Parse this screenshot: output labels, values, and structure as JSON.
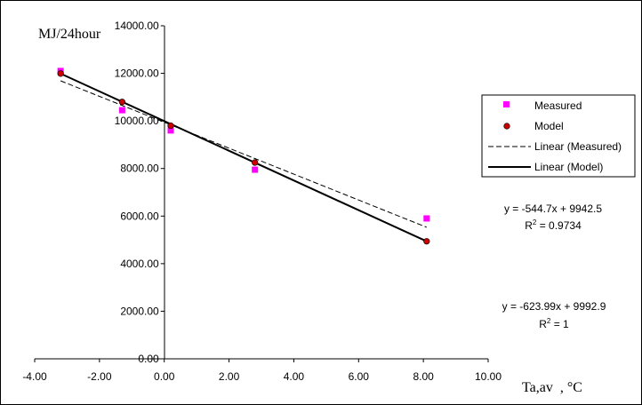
{
  "chart_data": {
    "type": "scatter",
    "xlabel": "Ta,av  , °C",
    "ylabel": "MJ/24hour",
    "xlim": [
      -4,
      10
    ],
    "ylim": [
      0,
      14000
    ],
    "x_ticks": [
      "-4.00",
      "-2.00",
      "0.00",
      "2.00",
      "4.00",
      "6.00",
      "8.00",
      "10.00"
    ],
    "y_ticks": [
      "0.00",
      "2000.00",
      "4000.00",
      "6000.00",
      "8000.00",
      "10000.00",
      "12000.00",
      "14000.00"
    ],
    "grid": false,
    "legend_position": "right",
    "series": [
      {
        "name": "Measured",
        "type": "scatter",
        "marker": "square",
        "color": "#ff00ff",
        "x": [
          -3.2,
          -1.3,
          0.2,
          2.8,
          8.1
        ],
        "y": [
          12100,
          10450,
          9600,
          7950,
          5900
        ]
      },
      {
        "name": "Model",
        "type": "scatter",
        "marker": "circle",
        "color": "#cc0000",
        "x": [
          -3.2,
          -1.3,
          0.2,
          2.8,
          8.1
        ],
        "y": [
          11990,
          10800,
          9800,
          8250,
          4940
        ]
      },
      {
        "name": "Linear (Measured)",
        "type": "trendline",
        "style": "dashed",
        "color": "#000000",
        "slope": -544.7,
        "intercept": 9942.5,
        "x_range": [
          -3.2,
          8.1
        ]
      },
      {
        "name": "Linear (Model)",
        "type": "trendline",
        "style": "solid",
        "color": "#000000",
        "slope": -623.99,
        "intercept": 9992.9,
        "x_range": [
          -3.2,
          8.1
        ]
      }
    ],
    "annotations": {
      "measured_eq": "y = -544.7x + 9942.5",
      "measured_r2_prefix": "R",
      "measured_r2_sup": "2",
      "measured_r2_value": " = 0.9734",
      "model_eq": "y = -623.99x + 9992.9",
      "model_r2_prefix": "R",
      "model_r2_sup": "2",
      "model_r2_value": " = 1"
    }
  }
}
